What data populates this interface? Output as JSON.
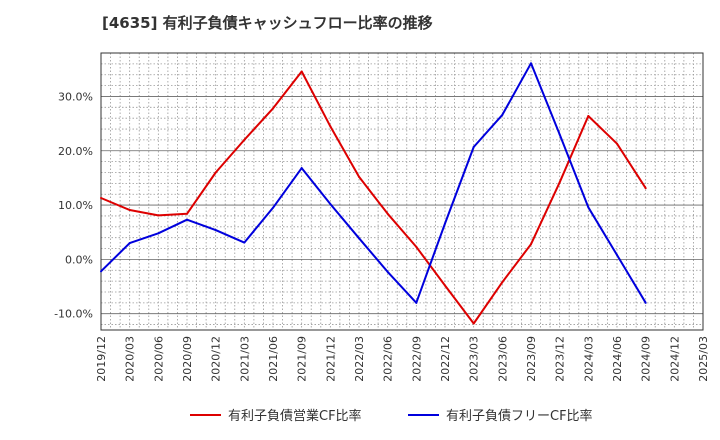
{
  "title": "[4635]  有利子負債キャッシュフロー比率の推移",
  "chart_data": {
    "type": "line",
    "title": "[4635]  有利子負債キャッシュフロー比率の推移",
    "x": [
      "2019/12",
      "2020/03",
      "2020/06",
      "2020/09",
      "2020/12",
      "2021/03",
      "2021/06",
      "2021/09",
      "2021/12",
      "2022/03",
      "2022/06",
      "2022/09",
      "2022/12",
      "2023/03",
      "2023/06",
      "2023/09",
      "2023/12",
      "2024/03",
      "2024/06",
      "2024/09",
      "2024/12",
      "2025/03"
    ],
    "y_ticks": [
      "-10.0%",
      "0.0%",
      "10.0%",
      "20.0%",
      "30.0%"
    ],
    "ylim": [
      -13,
      38
    ],
    "y_unit": "%",
    "grid": true,
    "legend_position": "bottom",
    "series": [
      {
        "name": "有利子負債営業CF比率",
        "color": "#dd0000",
        "values": [
          11.3,
          9.1,
          8.1,
          8.4,
          16.0,
          22.0,
          27.8,
          34.6,
          24.5,
          15.2,
          8.4,
          2.3,
          -4.8,
          -11.8,
          -4.2,
          2.8,
          14.2,
          26.4,
          21.3,
          13.1,
          null,
          null
        ]
      },
      {
        "name": "有利子負債フリーCF比率",
        "color": "#0000dd",
        "values": [
          -2.2,
          3.0,
          4.8,
          7.3,
          5.4,
          3.1,
          9.5,
          16.8,
          10.2,
          3.9,
          -2.3,
          -8.0,
          6.6,
          20.7,
          26.6,
          36.1,
          23.0,
          9.6,
          0.8,
          -8.0,
          null,
          null
        ]
      }
    ]
  }
}
